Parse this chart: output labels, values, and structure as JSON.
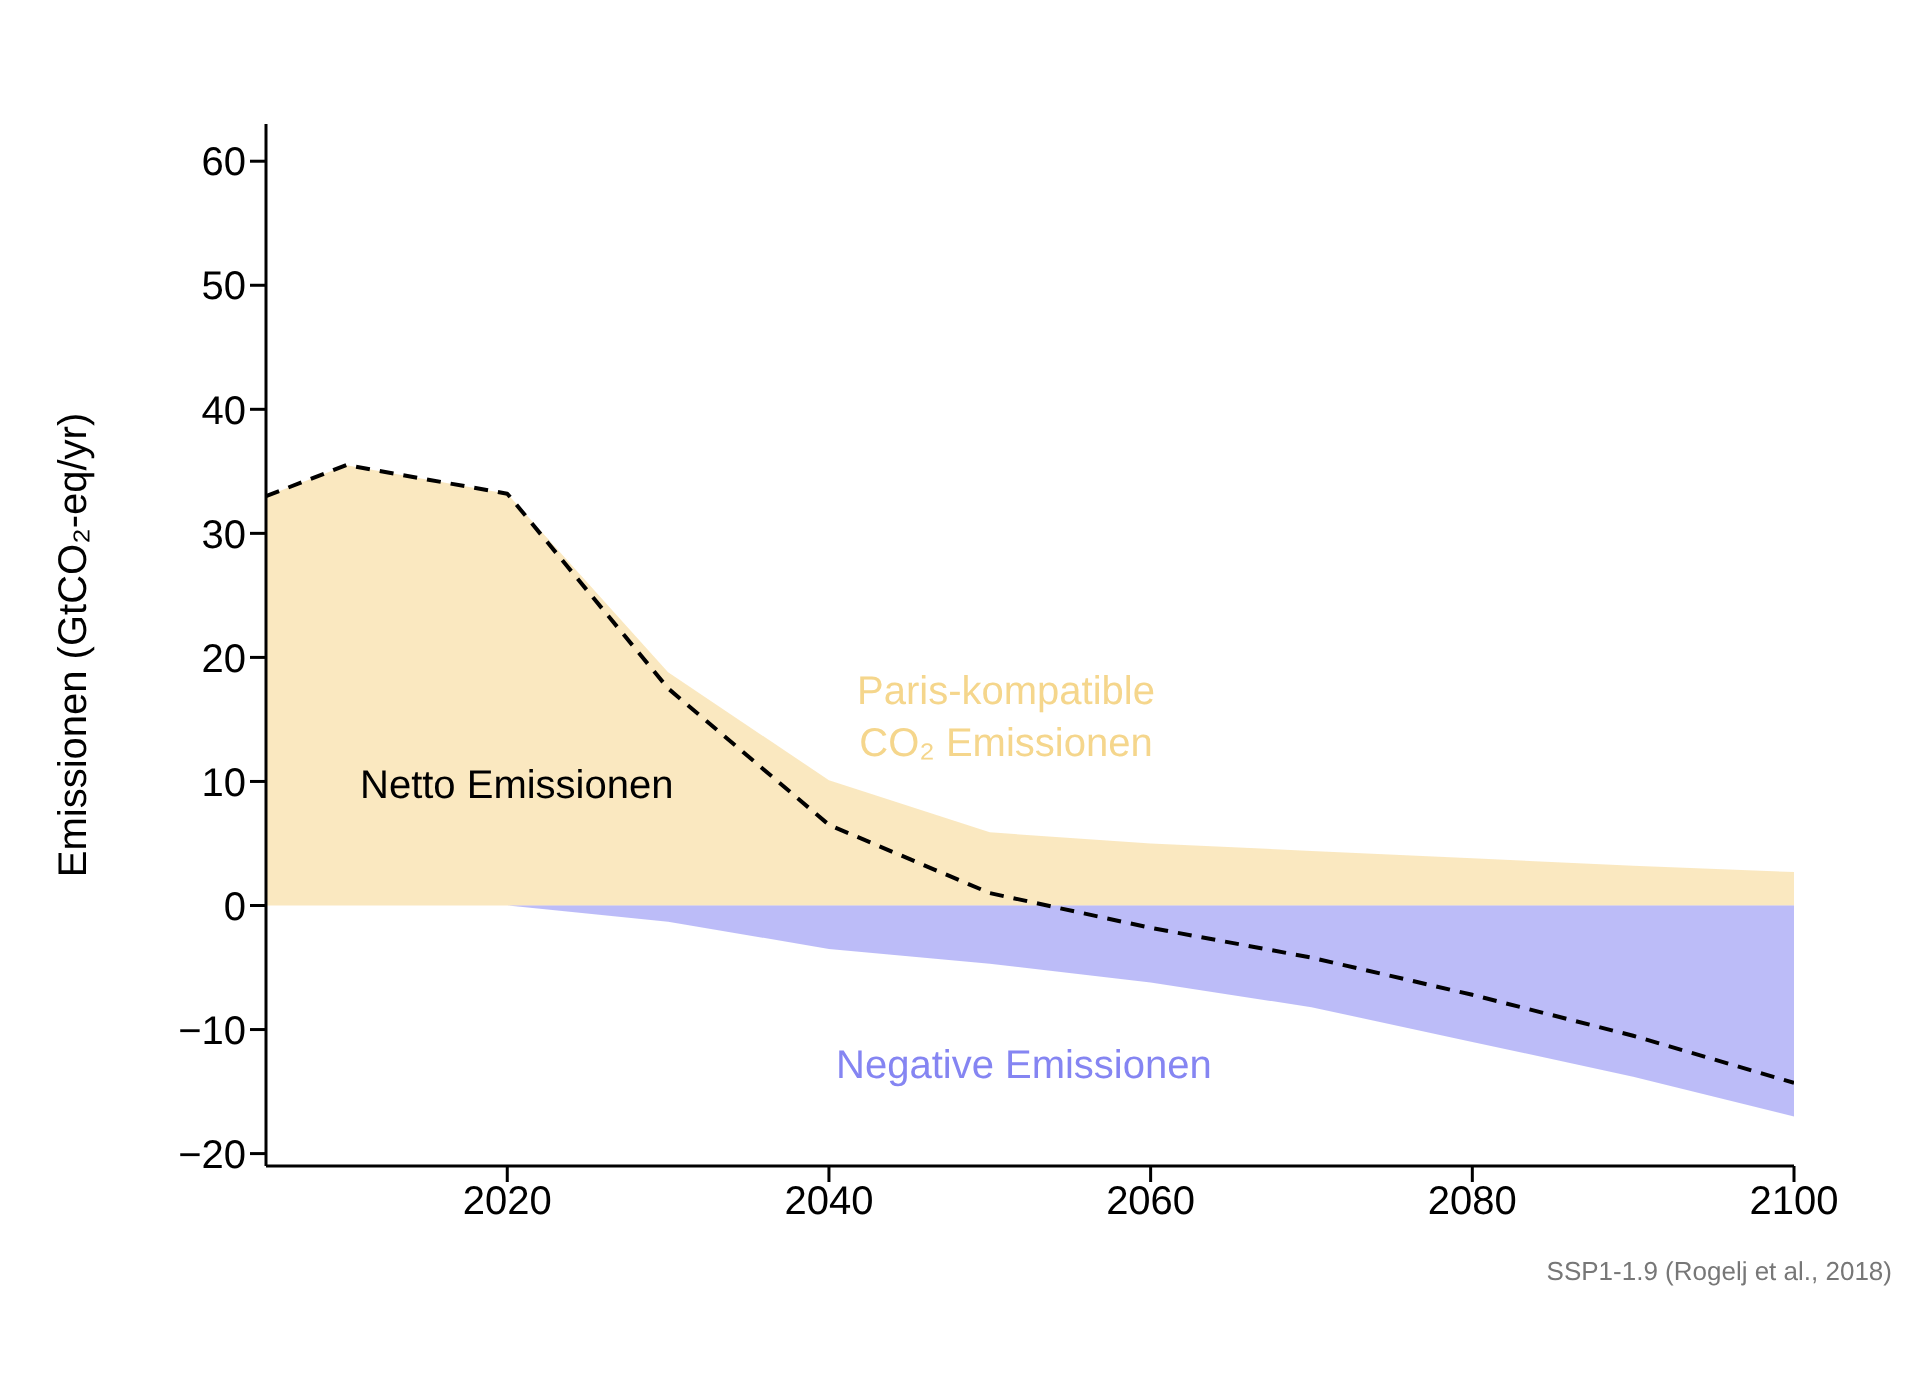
{
  "chart_data": {
    "type": "area",
    "ylabel": "Emissionen (GtCO₂-eq/yr)",
    "x": [
      2005,
      2010,
      2020,
      2030,
      2040,
      2050,
      2060,
      2070,
      2080,
      2090,
      2100
    ],
    "xlim": [
      2005,
      2100
    ],
    "xticks": [
      2020,
      2040,
      2060,
      2080,
      2100
    ],
    "ylim": [
      -21,
      63
    ],
    "yticks": [
      -20,
      -10,
      0,
      10,
      20,
      30,
      40,
      50,
      60
    ],
    "grid": false,
    "legend": false,
    "series": [
      {
        "name": "Paris-kompatible CO₂ Emissionen",
        "color": "#f5d68c",
        "values": [
          33,
          35.5,
          33.2,
          18.8,
          10.1,
          5.9,
          5,
          4.4,
          3.8,
          3.2,
          2.7
        ]
      },
      {
        "name": "Negative Emissionen",
        "color": "#8585f2",
        "values": [
          0,
          0,
          0,
          -1.3,
          -3.5,
          -4.7,
          -6.2,
          -8.2,
          -11,
          -13.8,
          -17
        ]
      },
      {
        "name": "Netto Emissionen",
        "type": "line",
        "color": "#000000",
        "line_style": "dashed",
        "marker": "none",
        "values": [
          33,
          35.5,
          33.2,
          17.5,
          6.5,
          1,
          -1.8,
          -4.2,
          -7.2,
          -10.5,
          -14.3
        ]
      }
    ],
    "annotations": [
      "SSP1-1.9 (Rogelj et al., 2018)"
    ]
  }
}
